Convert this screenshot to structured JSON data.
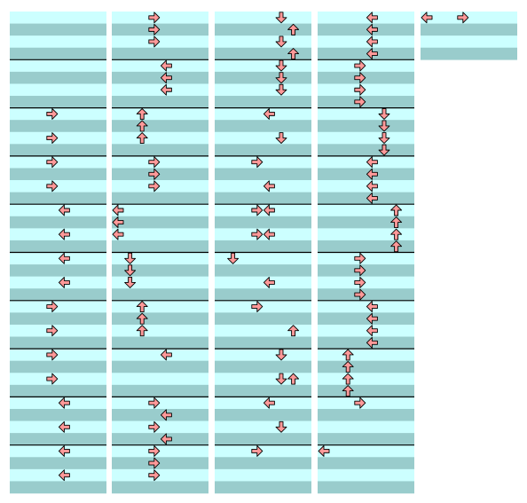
{
  "step_chart": {
    "columns": [
      [
        [
          "00000000",
          "00000000",
          "00000000",
          "00000000"
        ],
        [
          "00000000",
          "00000000",
          "00000000",
          "00000000"
        ],
        [
          "00010000",
          "00000000",
          "00010000",
          "00000000"
        ],
        [
          "00010000",
          "00000000",
          "00010000",
          "00000000"
        ],
        [
          "00001000",
          "00000000",
          "00001000",
          "00000000"
        ],
        [
          "00001000",
          "00000000",
          "00001000",
          "00000000"
        ],
        [
          "00010000",
          "00000000",
          "00010000",
          "00000000"
        ],
        [
          "00010000",
          "00000000",
          "00010000",
          "00000000"
        ],
        [
          "00001000",
          "00000000",
          "00001000",
          "00000000"
        ],
        [
          "00001000",
          "00000000",
          "00001000",
          "00000000"
        ]
      ],
      [
        [
          "00010000",
          "00010000",
          "00010000",
          "00000000"
        ],
        [
          "00001000",
          "00001000",
          "00001000",
          "00000000"
        ],
        [
          "00100000",
          "00100000",
          "00100000",
          "00000000"
        ],
        [
          "00010000",
          "00010000",
          "00010000",
          "00000000"
        ],
        [
          "10000000",
          "10000000",
          "10000000",
          "00000000"
        ],
        [
          "01000000",
          "01000000",
          "01000000",
          "00000000"
        ],
        [
          "00100000",
          "00100000",
          "00100000",
          "00000000"
        ],
        [
          "00001000",
          "00000000",
          "00000000",
          "00000000"
        ],
        [
          "00010000",
          "00001000",
          "00010000",
          "00001000"
        ],
        [
          "00010000",
          "00010000",
          "00010000",
          "00000000"
        ]
      ],
      [
        [
          "00000100",
          "00000010",
          "00000100",
          "00000010"
        ],
        [
          "00000100",
          "00000100",
          "00000100",
          "00000000"
        ],
        [
          "00001000",
          "00000000",
          "00000100",
          "00000000"
        ],
        [
          "00010000",
          "00000000",
          "00001000",
          "00000000"
        ],
        [
          "00011000",
          "00000000",
          "00011000",
          "00000000"
        ],
        [
          "01000000",
          "00000000",
          "00001000",
          "00000000"
        ],
        [
          "00010000",
          "00000000",
          "00000010",
          "00000000"
        ],
        [
          "00000100",
          "00000000",
          "00000110",
          "00000000"
        ],
        [
          "00001000",
          "00000000",
          "00000100",
          "00000000"
        ],
        [
          "00010000",
          "00000000",
          "00000000",
          "00000000"
        ]
      ],
      [
        [
          "00001000",
          "00001000",
          "00001000",
          "00001000"
        ],
        [
          "00010000",
          "00010000",
          "00010000",
          "00010000"
        ],
        [
          "00000100",
          "00000100",
          "00000100",
          "00000100"
        ],
        [
          "00001000",
          "00001000",
          "00001000",
          "00001000"
        ],
        [
          "00000010",
          "00000010",
          "00000010",
          "00000010"
        ],
        [
          "00010000",
          "00010000",
          "00010000",
          "00010000"
        ],
        [
          "00001000",
          "00001000",
          "00001000",
          "00001000"
        ],
        [
          "00100000",
          "00100000",
          "00100000",
          "00100000"
        ],
        [
          "00010000",
          "00000000",
          "00000000",
          "00000000"
        ],
        [
          "10000000",
          "00000000",
          "00000000",
          "00000000"
        ]
      ],
      [
        [
          "10010000",
          "00000000",
          "00000000",
          "00000000"
        ]
      ]
    ]
  }
}
